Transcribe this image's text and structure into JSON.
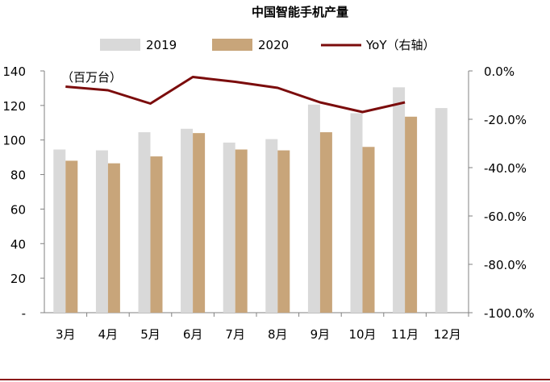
{
  "chart_data": {
    "type": "bar",
    "title": "中国智能手机产量",
    "unit_label": "（百万台）",
    "categories": [
      "3月",
      "4月",
      "5月",
      "6月",
      "7月",
      "8月",
      "9月",
      "10月",
      "11月",
      "12月"
    ],
    "series": [
      {
        "name": "2019",
        "type": "bar",
        "axis": "left",
        "color": "#D9D9D9",
        "values": [
          94.5,
          94,
          104.5,
          106.5,
          98.5,
          100.5,
          120.5,
          115.5,
          130.5,
          118.5
        ]
      },
      {
        "name": "2020",
        "type": "bar",
        "axis": "left",
        "color": "#C8A57A",
        "values": [
          88,
          86.5,
          90.5,
          104,
          94.5,
          94,
          104.5,
          96,
          113.5,
          null
        ]
      },
      {
        "name": "YoY（右轴）",
        "type": "line",
        "axis": "right",
        "color": "#7B0C0C",
        "values": [
          -6.5,
          -8,
          -13.5,
          -2.5,
          -4.5,
          -7,
          -13,
          -17,
          -13,
          null
        ]
      }
    ],
    "yleft": {
      "min": 0,
      "max": 140,
      "ticks": [
        "-",
        "20",
        "40",
        "60",
        "80",
        "100",
        "120",
        "140"
      ]
    },
    "yright": {
      "min": -100,
      "max": 0,
      "ticks": [
        "-100.0%",
        "-80.0%",
        "-60.0%",
        "-40.0%",
        "-20.0%",
        "0.0%"
      ]
    },
    "legend_position": "top"
  }
}
